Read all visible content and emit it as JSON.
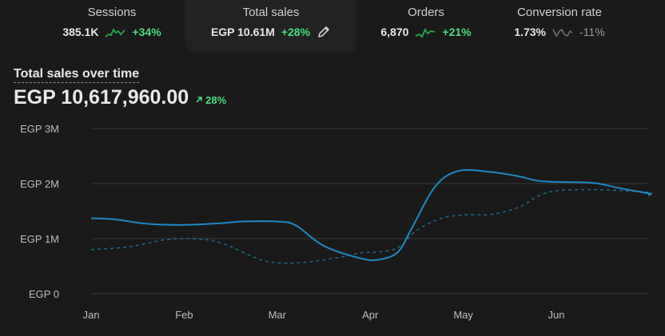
{
  "metrics": [
    {
      "label": "Sessions",
      "value": "385.1K",
      "change": "+34%",
      "trend": "up"
    },
    {
      "label": "Total sales",
      "value": "EGP 10.61M",
      "change": "+28%",
      "trend": "up",
      "active": true
    },
    {
      "label": "Orders",
      "value": "6,870",
      "change": "+21%",
      "trend": "up"
    },
    {
      "label": "Conversion rate",
      "value": "1.73%",
      "change": "-11%",
      "trend": "down"
    }
  ],
  "icons": {
    "edit": "pencil-icon",
    "up_arrow": "arrow-up-right-icon"
  },
  "colors": {
    "positive": "#4ade80",
    "current_series": "#1e88c7",
    "comparison_series": "#1f6a8c"
  },
  "chart": {
    "title": "Total sales over time",
    "total": "EGP 10,617,960.00",
    "change": "28%"
  },
  "chart_data": {
    "type": "line",
    "x": [
      "Jan",
      "Feb",
      "Mar",
      "Apr",
      "May",
      "Jun"
    ],
    "xlim": [
      "Jan 1",
      "Jun 30"
    ],
    "yticks": [
      "EGP 0",
      "EGP 1M",
      "EGP 2M",
      "EGP 3M"
    ],
    "ylim": [
      0,
      3000000
    ],
    "grid": true,
    "series": [
      {
        "style": "solid",
        "points": [
          [
            0.0,
            1370000
          ],
          [
            0.25,
            1350000
          ],
          [
            0.6,
            1270000
          ],
          [
            1.0,
            1250000
          ],
          [
            1.4,
            1280000
          ],
          [
            1.6,
            1310000
          ],
          [
            2.0,
            1310000
          ],
          [
            2.2,
            1240000
          ],
          [
            2.5,
            870000
          ],
          [
            2.9,
            640000
          ],
          [
            3.1,
            620000
          ],
          [
            3.3,
            760000
          ],
          [
            3.45,
            1200000
          ],
          [
            3.7,
            1950000
          ],
          [
            3.95,
            2230000
          ],
          [
            4.3,
            2210000
          ],
          [
            4.6,
            2130000
          ],
          [
            4.8,
            2050000
          ],
          [
            5.0,
            2030000
          ],
          [
            5.4,
            2010000
          ],
          [
            5.7,
            1910000
          ],
          [
            6.0,
            1820000
          ],
          [
            6.15,
            1800000
          ],
          [
            6.4,
            1780000
          ]
        ]
      },
      {
        "style": "dashed",
        "points": [
          [
            0.0,
            800000
          ],
          [
            0.4,
            850000
          ],
          [
            0.8,
            980000
          ],
          [
            1.1,
            1000000
          ],
          [
            1.4,
            920000
          ],
          [
            1.8,
            630000
          ],
          [
            2.0,
            560000
          ],
          [
            2.3,
            570000
          ],
          [
            2.7,
            670000
          ],
          [
            2.9,
            740000
          ],
          [
            3.1,
            760000
          ],
          [
            3.3,
            840000
          ],
          [
            3.5,
            1150000
          ],
          [
            3.75,
            1360000
          ],
          [
            4.0,
            1430000
          ],
          [
            4.3,
            1440000
          ],
          [
            4.6,
            1570000
          ],
          [
            4.8,
            1770000
          ],
          [
            5.0,
            1870000
          ],
          [
            5.3,
            1890000
          ],
          [
            5.6,
            1880000
          ],
          [
            6.0,
            1840000
          ],
          [
            6.4,
            1810000
          ]
        ]
      }
    ]
  }
}
